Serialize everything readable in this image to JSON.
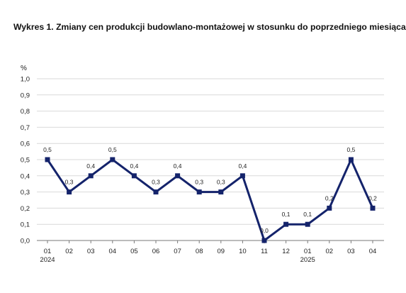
{
  "chart_data": {
    "type": "line",
    "title": "Wykres 1. Zmiany cen produkcji budowlano-montażowej w stosunku do poprzedniego miesiąca",
    "ylabel": "%",
    "xlabel": "",
    "categories": [
      "01",
      "02",
      "03",
      "04",
      "05",
      "06",
      "07",
      "08",
      "09",
      "10",
      "11",
      "12",
      "01",
      "02",
      "03",
      "04"
    ],
    "year_labels": [
      {
        "index": 0,
        "label": "2024"
      },
      {
        "index": 12,
        "label": "2025"
      }
    ],
    "series": [
      {
        "values": [
          0.5,
          0.3,
          0.4,
          0.5,
          0.4,
          0.3,
          0.4,
          0.3,
          0.3,
          0.4,
          0.0,
          0.1,
          0.1,
          0.2,
          0.5,
          0.2
        ],
        "labels": [
          "0,5",
          "0,3",
          "0,4",
          "0,5",
          "0,4",
          "0,3",
          "0,4",
          "0,3",
          "0,3",
          "0,4",
          "0,0",
          "0,1",
          "0,1",
          "0,2",
          "0,5",
          "0,2"
        ]
      }
    ],
    "ylim": [
      0.0,
      1.0
    ],
    "yticks": [
      "0,0",
      "0,1",
      "0,2",
      "0,3",
      "0,4",
      "0,5",
      "0,6",
      "0,7",
      "0,8",
      "0,9",
      "1,0"
    ],
    "grid": true,
    "colors": {
      "line": "#14236b",
      "grid": "#d9d9d9",
      "axis": "#7a7a7a"
    }
  }
}
